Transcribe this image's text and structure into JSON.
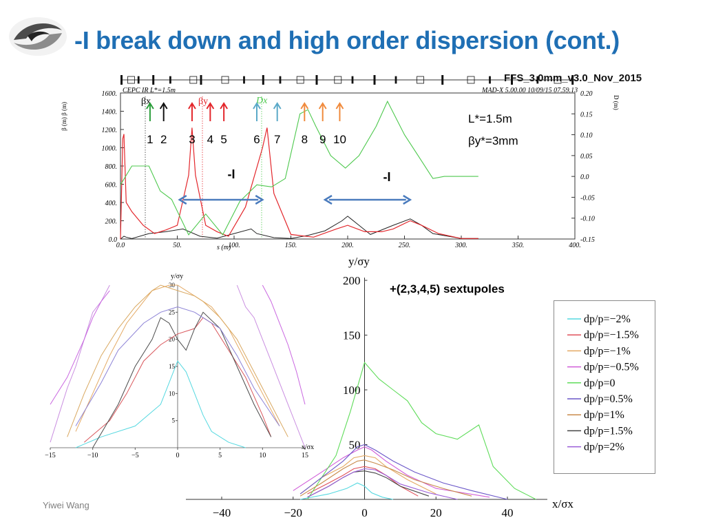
{
  "slide": {
    "title": "-I break down and high order dispersion (cont.)",
    "config_label": "FFS_3.0mm_v3.0_Nov_2015",
    "footer": "Yiwei Wang"
  },
  "top_plot": {
    "header_left": "CEPC IR L*=1.5m",
    "header_right": "MAD-X 5.00.00  10/09/15 07.59.13",
    "left_axis_label": "β (m)  β (m)",
    "right_axis_label": "D (m)",
    "xlabel": "s (m)",
    "beta_x_label": "βx",
    "beta_y_label": "βy",
    "disp_label": "Dx",
    "params": [
      "L*=1.5m",
      "βy*=3mm"
    ],
    "minus_i_labels": [
      "-I",
      "-I"
    ],
    "sext_numbers": [
      "1",
      "2",
      "3",
      "4",
      "5",
      "6",
      "7",
      "8",
      "9",
      "10"
    ],
    "sext_positions": [
      26,
      38,
      63,
      79,
      91,
      120,
      138,
      162,
      178,
      193
    ],
    "sext_colors": [
      "#2a9d3a",
      "#111111",
      "#e3262b",
      "#e3262b",
      "#e3262b",
      "#5aa9c8",
      "#5aa9c8",
      "#f08a3c",
      "#f08a3c",
      "#f08a3c"
    ],
    "arrow_spans": [
      [
        52,
        125
      ],
      [
        180,
        255
      ]
    ],
    "arrow_color": "#4a7bbd"
  },
  "chart_data": [
    {
      "type": "line",
      "title": "",
      "xlabel": "s (m)",
      "ylabel": "β (m)",
      "xlim": [
        0,
        400
      ],
      "ylim": [
        0,
        1600
      ],
      "y2lim": [
        -0.15,
        0.2
      ],
      "x_ticks": [
        "0.0",
        "50.",
        "100.",
        "150.",
        "200.",
        "250.",
        "300.",
        "350.",
        "400."
      ],
      "y_ticks": [
        "0.0",
        "200.",
        "400.",
        "600.",
        "800.",
        "1000.",
        "1200.",
        "1400.",
        "1600."
      ],
      "y2_ticks": [
        "-0.15",
        "-0.10",
        "-0.05",
        "0.0",
        "0.05",
        "0.10",
        "0.15",
        "0.20"
      ],
      "series": [
        {
          "name": "βx",
          "color": "#222222",
          "x": [
            0,
            3,
            5,
            10,
            25,
            40,
            55,
            70,
            85,
            100,
            115,
            120,
            135,
            150,
            165,
            180,
            195,
            200,
            210,
            220,
            240,
            255,
            265,
            275,
            300,
            315
          ],
          "y": [
            0,
            30,
            20,
            5,
            60,
            80,
            110,
            30,
            10,
            60,
            110,
            60,
            15,
            5,
            40,
            90,
            200,
            250,
            150,
            50,
            150,
            220,
            150,
            60,
            5,
            5
          ]
        },
        {
          "name": "βy",
          "color": "#e3262b",
          "x": [
            0,
            2,
            3,
            5,
            10,
            20,
            30,
            40,
            50,
            60,
            63,
            66,
            75,
            85,
            95,
            110,
            125,
            129,
            135,
            150,
            170,
            190,
            200,
            215,
            230,
            240,
            255,
            265,
            280,
            300,
            315
          ],
          "y": [
            0,
            1100,
            1150,
            400,
            300,
            150,
            60,
            100,
            150,
            700,
            1220,
            700,
            150,
            80,
            30,
            350,
            1000,
            1220,
            500,
            50,
            20,
            110,
            150,
            80,
            80,
            110,
            200,
            150,
            60,
            5,
            5
          ]
        },
        {
          "name": "Dx",
          "color": "#4cc84c",
          "x": [
            0,
            10,
            25,
            35,
            45,
            60,
            75,
            90,
            105,
            120,
            133,
            145,
            158,
            165,
            172,
            185,
            198,
            210,
            225,
            235,
            250,
            262,
            275,
            285,
            300,
            315
          ],
          "y": [
            -0.02,
            0.025,
            0.025,
            -0.035,
            -0.055,
            -0.14,
            -0.09,
            -0.14,
            -0.06,
            -0.02,
            -0.025,
            -0.005,
            0.15,
            0.16,
            0.12,
            0.05,
            0.02,
            0.05,
            0.12,
            0.18,
            0.1,
            0.05,
            -0.005,
            0.0,
            0.0,
            0.0
          ]
        }
      ]
    },
    {
      "type": "line",
      "title": "",
      "xlabel": "x/σx",
      "ylabel": "y/σy",
      "xlim": [
        -15,
        15
      ],
      "ylim": [
        0,
        30
      ],
      "x_ticks": [
        -15,
        -10,
        -5,
        0,
        5,
        10,
        15
      ],
      "y_ticks": [
        5,
        10,
        15,
        20,
        25,
        30
      ],
      "series": [
        {
          "color": "#54d8e0",
          "x": [
            -12,
            -9,
            -5,
            -2,
            -1,
            0,
            1,
            2,
            3,
            4,
            6,
            8
          ],
          "y": [
            0,
            2,
            4,
            8,
            12,
            16,
            14,
            10,
            6,
            3,
            1,
            0
          ]
        },
        {
          "color": "#d9555a",
          "x": [
            -11,
            -8,
            -6,
            -4,
            -2,
            0,
            2,
            3,
            4,
            6,
            8,
            10,
            11
          ],
          "y": [
            1,
            5,
            10,
            16,
            19,
            21,
            22,
            24,
            23,
            18,
            13,
            6,
            2
          ]
        },
        {
          "color": "#e4a963",
          "x": [
            -12,
            -10,
            -8,
            -6,
            -4,
            -3,
            -1,
            0,
            2,
            4,
            6,
            8,
            10,
            12
          ],
          "y": [
            3,
            10,
            17,
            23,
            27,
            29,
            30,
            30,
            28,
            26,
            22,
            16,
            10,
            4
          ]
        },
        {
          "color": "#c98de0",
          "x": [
            -15,
            -14,
            -13,
            -12,
            -11,
            -10,
            -9,
            -8
          ],
          "y": [
            1,
            6,
            11,
            15,
            20,
            25,
            27,
            30
          ]
        },
        {
          "color": "#c98de0",
          "x": [
            7,
            8,
            9,
            10,
            11,
            12,
            13,
            14,
            15
          ],
          "y": [
            30,
            26,
            24,
            20,
            16,
            12,
            8,
            4,
            0
          ]
        },
        {
          "color": "#c966e0",
          "x": [
            -15,
            -13,
            -11,
            -10,
            -9,
            -8
          ],
          "y": [
            8,
            13,
            20,
            24,
            27,
            29
          ]
        },
        {
          "color": "#c966e0",
          "x": [
            10,
            11,
            12,
            13,
            14,
            15
          ],
          "y": [
            30,
            27,
            23,
            19,
            14,
            8
          ]
        },
        {
          "color": "#4b4b4b",
          "x": [
            -10,
            -7,
            -5,
            -3,
            -2,
            -1,
            0,
            1,
            2,
            3,
            5,
            7,
            9,
            11
          ],
          "y": [
            0,
            8,
            15,
            20,
            24,
            23,
            20,
            18,
            22,
            25,
            22,
            15,
            8,
            2
          ]
        },
        {
          "color": "#d9a860",
          "x": [
            -13,
            -11,
            -9,
            -7,
            -5,
            -3,
            -2,
            0,
            2,
            3,
            5,
            7,
            9,
            11,
            13
          ],
          "y": [
            2,
            10,
            17,
            22,
            26,
            29,
            30,
            29,
            28,
            27,
            24,
            20,
            14,
            8,
            2
          ]
        },
        {
          "color": "#8c82d6",
          "x": [
            -12,
            -9,
            -7,
            -4,
            -2,
            0,
            2,
            5,
            7,
            9,
            12
          ],
          "y": [
            4,
            12,
            18,
            23,
            25,
            26,
            25,
            22,
            17,
            11,
            4
          ]
        }
      ]
    },
    {
      "type": "line",
      "title": "+(2,3,4,5) sextupoles",
      "xlabel": "x/σx",
      "ylabel": "y/σy",
      "xlim": [
        -50,
        50
      ],
      "ylim": [
        0,
        200
      ],
      "x_ticks": [
        -40,
        -20,
        0,
        20,
        40
      ],
      "y_ticks": [
        50,
        100,
        150,
        200
      ],
      "series": [
        {
          "name": "dp/p=−2%",
          "color": "#54d8e0",
          "x": [
            -18,
            -10,
            -5,
            -2,
            0,
            2,
            5,
            8
          ],
          "y": [
            0,
            5,
            10,
            15,
            12,
            6,
            2,
            0
          ]
        },
        {
          "name": "dp/p=−1.5%",
          "color": "#e0505a",
          "x": [
            -16,
            -10,
            -6,
            -3,
            0,
            3,
            6,
            10,
            15
          ],
          "y": [
            5,
            15,
            22,
            28,
            30,
            28,
            22,
            12,
            3
          ]
        },
        {
          "name": "dp/p=−1%",
          "color": "#e4a963",
          "x": [
            -18,
            -12,
            -6,
            -3,
            0,
            3,
            6,
            12,
            20
          ],
          "y": [
            5,
            20,
            30,
            38,
            40,
            38,
            30,
            18,
            5
          ]
        },
        {
          "name": "dp/p=−0.5%",
          "color": "#d05cd8",
          "x": [
            -20,
            -12,
            -6,
            -2,
            0,
            2,
            6,
            12,
            20,
            35
          ],
          "y": [
            8,
            25,
            38,
            45,
            48,
            45,
            35,
            22,
            10,
            2
          ]
        },
        {
          "name": "dp/p=0",
          "color": "#5fdc5a",
          "x": [
            -16,
            -12,
            -8,
            -4,
            0,
            4,
            8,
            12,
            16,
            20,
            26,
            32,
            36,
            42,
            48
          ],
          "y": [
            0,
            20,
            40,
            80,
            125,
            110,
            100,
            90,
            70,
            60,
            55,
            68,
            30,
            10,
            0
          ]
        },
        {
          "name": "dp/p=0.5%",
          "color": "#6a56c8",
          "x": [
            -18,
            -12,
            -6,
            -2,
            0,
            3,
            8,
            14,
            22,
            30,
            40
          ],
          "y": [
            5,
            20,
            35,
            48,
            50,
            45,
            35,
            25,
            15,
            8,
            0
          ]
        },
        {
          "name": "dp/p=1%",
          "color": "#c88a4a",
          "x": [
            -18,
            -12,
            -6,
            -2,
            0,
            3,
            8,
            14,
            22,
            30
          ],
          "y": [
            3,
            15,
            28,
            35,
            36,
            33,
            27,
            18,
            10,
            3
          ]
        },
        {
          "name": "dp/p=1.5%",
          "color": "#444444",
          "x": [
            -16,
            -10,
            -6,
            -3,
            0,
            3,
            6,
            10,
            18
          ],
          "y": [
            2,
            12,
            20,
            25,
            26,
            24,
            20,
            12,
            3
          ]
        },
        {
          "name": "dp/p=2%",
          "color": "#9a5cd8",
          "x": [
            -16,
            -10,
            -6,
            -3,
            0,
            3,
            6,
            10,
            18,
            26
          ],
          "y": [
            2,
            12,
            20,
            25,
            28,
            27,
            22,
            14,
            6,
            0
          ]
        }
      ]
    }
  ]
}
